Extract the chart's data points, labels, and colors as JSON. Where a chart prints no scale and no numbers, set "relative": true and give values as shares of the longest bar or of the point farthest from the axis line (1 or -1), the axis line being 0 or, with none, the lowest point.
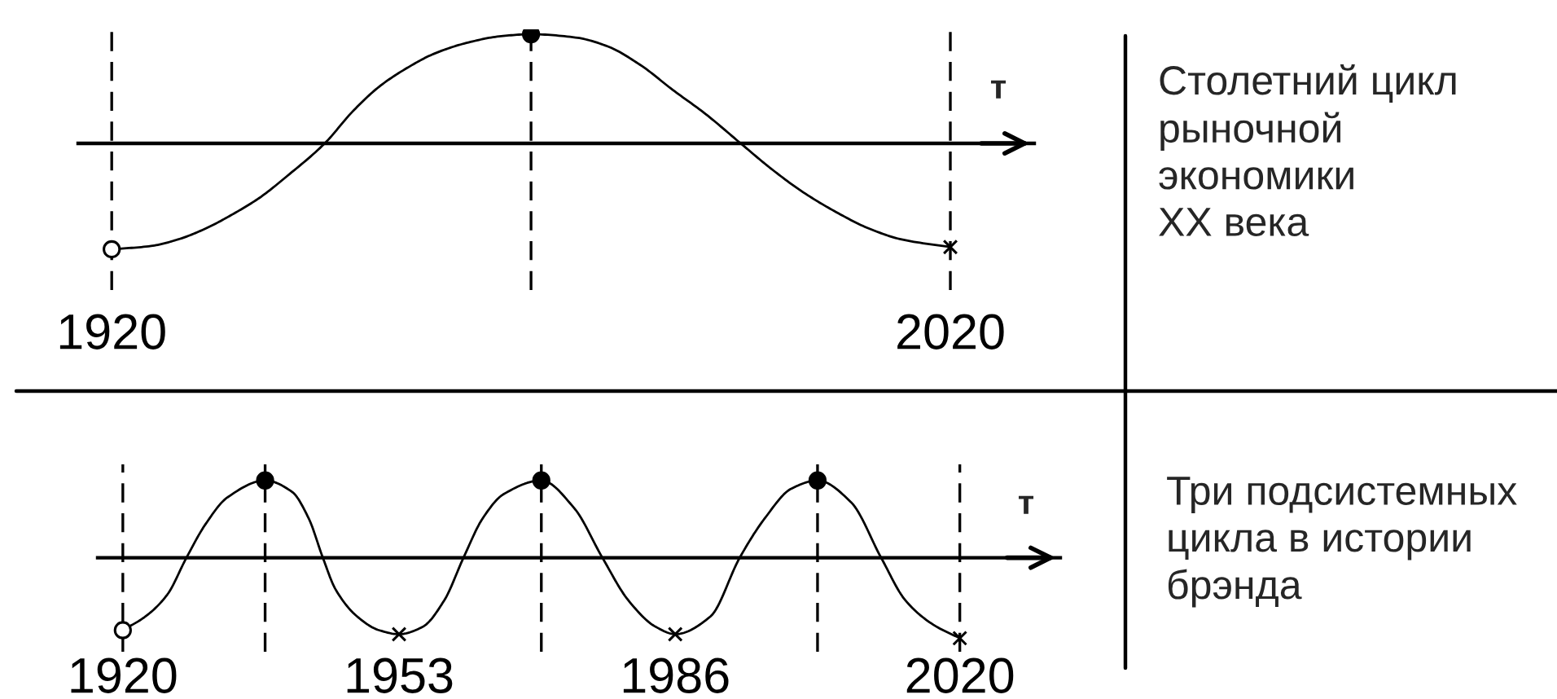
{
  "chart_data": [
    {
      "type": "line",
      "relative": true,
      "xlabel": "т",
      "xlim": [
        1916,
        2030
      ],
      "xticks": [
        1920,
        2020
      ],
      "series": [
        {
          "type": "line",
          "color": "#000000",
          "marker": "none",
          "x": [
            1920,
            1924.7,
            1927.9,
            1931.2,
            1934.4,
            1937.6,
            1940.9,
            1945.4,
            1948.7,
            1951.9,
            1955.2,
            1958.4,
            1962.3,
            1966.2,
            1970,
            1975.3,
            1979.1,
            1983,
            1986.9,
            1990.8,
            1995,
            1998.6,
            2002.5,
            2006.4,
            2010.3,
            2014.2,
            2020
          ],
          "values": [
            -0.97,
            -0.94,
            -0.88,
            -0.78,
            -0.65,
            -0.5,
            -0.3,
            0,
            0.29,
            0.52,
            0.69,
            0.82,
            0.92,
            0.98,
            1,
            0.97,
            0.89,
            0.72,
            0.49,
            0.27,
            0,
            -0.23,
            -0.45,
            -0.63,
            -0.78,
            -0.88,
            -0.95
          ]
        },
        {
          "type": "scatter",
          "color": "#ffffff",
          "marker": "circle",
          "x": [
            1920
          ],
          "values": [
            -0.97
          ]
        },
        {
          "type": "scatter",
          "color": "#000000",
          "marker": "circle",
          "x": [
            1970
          ],
          "values": [
            1
          ]
        },
        {
          "type": "scatter",
          "color": "#000000",
          "marker": "cross",
          "x": [
            2020
          ],
          "values": [
            -0.95
          ]
        }
      ],
      "ref_lines": [
        {
          "axis": "x",
          "value": 1920,
          "color": "#000000",
          "line_style": "dashed"
        },
        {
          "axis": "x",
          "value": 1970,
          "color": "#000000",
          "line_style": "dashed"
        },
        {
          "axis": "x",
          "value": 2020,
          "color": "#000000",
          "line_style": "dashed"
        }
      ]
    },
    {
      "type": "other",
      "title": "Столетний цикл\nрыночной\nэкономики\nXX века"
    },
    {
      "type": "line",
      "relative": true,
      "xlabel": "т",
      "xlim": [
        1917,
        2032
      ],
      "xticks": [
        1920,
        1953,
        1986,
        2020
      ],
      "series": [
        {
          "type": "line",
          "color": "#000000",
          "marker": "none",
          "x": [
            1920,
            1922.7,
            1925.3,
            1927.6,
            1929.9,
            1932.5,
            1937,
            1940.2,
            1942.2,
            1943.9,
            1945.4,
            1948,
            1950.6,
            1953,
            1955.8,
            1958.4,
            1960.7,
            1963,
            1965.5,
            1970,
            1973.9,
            1977.3,
            1980.4,
            1983.7,
            1986,
            1990.2,
            1993.7,
            1996.7,
            1999.9,
            2003,
            2007,
            2010.6,
            2013.5,
            2016.8,
            2020
          ],
          "values": [
            -0.9,
            -0.73,
            -0.46,
            0,
            0.42,
            0.75,
            0.96,
            0.82,
            0.49,
            0,
            -0.39,
            -0.73,
            -0.9,
            -0.95,
            -0.86,
            -0.53,
            0,
            0.49,
            0.79,
            0.96,
            0.62,
            0,
            -0.53,
            -0.86,
            -0.95,
            -0.73,
            0,
            0.49,
            0.86,
            0.96,
            0.69,
            0,
            -0.53,
            -0.83,
            -1
          ]
        },
        {
          "type": "scatter",
          "color": "#ffffff",
          "marker": "circle",
          "x": [
            1920
          ],
          "values": [
            -0.9
          ]
        },
        {
          "type": "scatter",
          "color": "#000000",
          "marker": "circle",
          "x": [
            1937,
            1970,
            2003
          ],
          "values": [
            0.96,
            0.96,
            0.96
          ]
        },
        {
          "type": "scatter",
          "color": "#000000",
          "marker": "cross",
          "x": [
            1953,
            1986,
            2020
          ],
          "values": [
            -0.95,
            -0.95,
            -1
          ]
        }
      ],
      "ref_lines": [
        {
          "axis": "x",
          "value": 1920,
          "color": "#000000",
          "line_style": "dashed"
        },
        {
          "axis": "x",
          "value": 1937,
          "color": "#000000",
          "line_style": "dashed"
        },
        {
          "axis": "x",
          "value": 1970,
          "color": "#000000",
          "line_style": "dashed"
        },
        {
          "axis": "x",
          "value": 2003,
          "color": "#000000",
          "line_style": "dashed"
        },
        {
          "axis": "x",
          "value": 2020,
          "color": "#000000",
          "line_style": "dashed"
        }
      ]
    },
    {
      "type": "other",
      "title": "Три подсистемных\nцикла в истории\nбрэнда"
    }
  ]
}
